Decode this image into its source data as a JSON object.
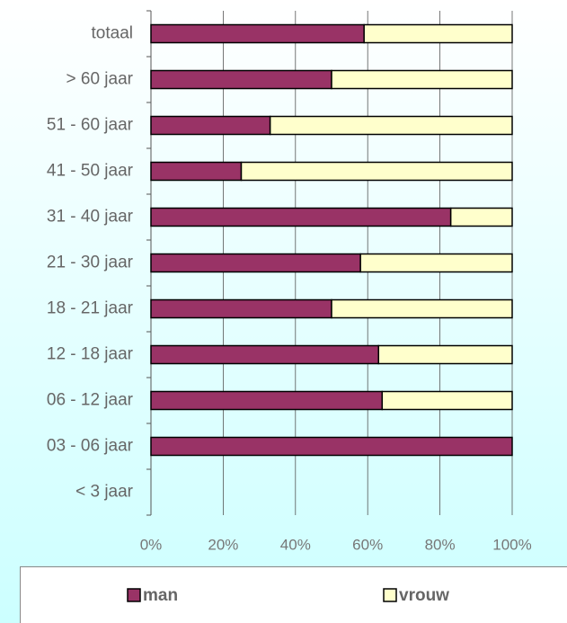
{
  "chart_data": {
    "type": "stacked_barh",
    "categories": [
      "totaal",
      "> 60 jaar",
      "51 - 60 jaar",
      "41 - 50 jaar",
      "31 - 40 jaar",
      "21 - 30 jaar",
      "18 - 21 jaar",
      "12 - 18 jaar",
      "06 - 12 jaar",
      "03 - 06 jaar",
      "< 3 jaar"
    ],
    "series": [
      {
        "name": "man",
        "color": "#993366",
        "values": [
          59,
          50,
          33,
          25,
          83,
          58,
          50,
          63,
          64,
          100,
          null
        ]
      },
      {
        "name": "vrouw",
        "color": "#ffffcc",
        "values": [
          41,
          50,
          67,
          75,
          17,
          42,
          50,
          37,
          36,
          0,
          null
        ]
      }
    ],
    "xlim": [
      0,
      100
    ],
    "xticks": [
      {
        "value": 0,
        "label": "0%"
      },
      {
        "value": 20,
        "label": "20%"
      },
      {
        "value": 40,
        "label": "40%"
      },
      {
        "value": 60,
        "label": "60%"
      },
      {
        "value": 80,
        "label": "80%"
      },
      {
        "value": 100,
        "label": "100%"
      }
    ],
    "grid": true,
    "legend": "bottom"
  }
}
